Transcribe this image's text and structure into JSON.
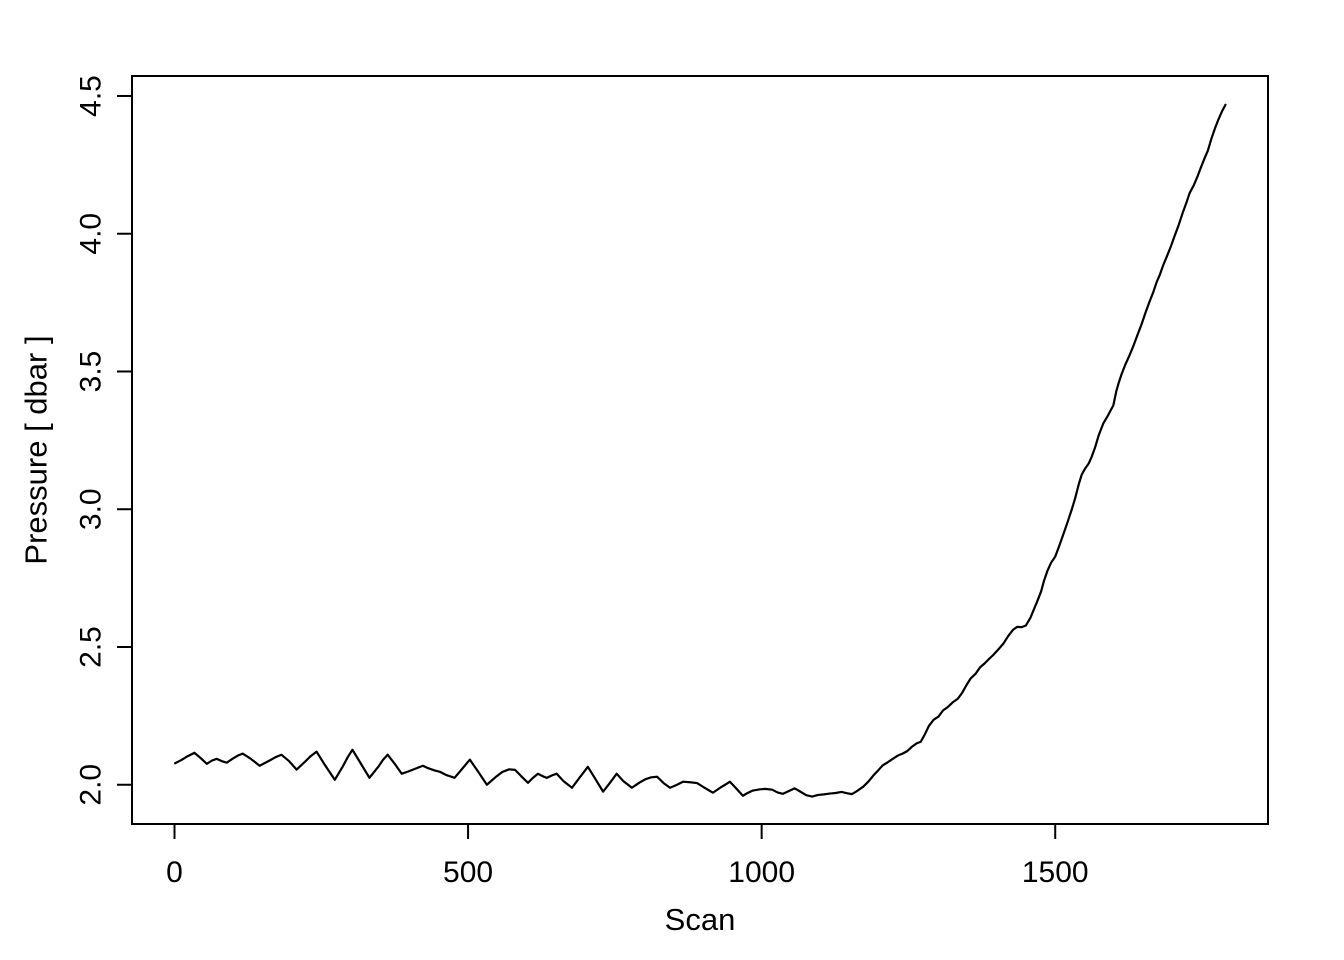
{
  "figure": {
    "background_color": "#FFFFFF",
    "foreground_color": "#000000"
  },
  "chart_data": {
    "type": "line",
    "title": "",
    "xlabel": "Scan",
    "ylabel": "Pressure [ dbar ]",
    "grid": false,
    "legend": null,
    "line_color": "#000000",
    "background": "#FFFFFF",
    "xlim": [
      -72.4,
      1862.4
    ],
    "ylim": [
      1.8575,
      4.5725
    ],
    "x_ticks": [
      0,
      500,
      1000,
      1500
    ],
    "x_tick_labels": [
      "0",
      "500",
      "1000",
      "1500"
    ],
    "y_ticks": [
      2.0,
      2.5,
      3.0,
      3.5,
      4.0,
      4.5
    ],
    "y_tick_labels": [
      "2.0",
      "2.5",
      "3.0",
      "3.5",
      "4.0",
      "4.5"
    ],
    "series": [
      {
        "name": "pressure",
        "points": [
          [
            1,
            2.078
          ],
          [
            12,
            2.09
          ],
          [
            22,
            2.103
          ],
          [
            34,
            2.116
          ],
          [
            45,
            2.096
          ],
          [
            55,
            2.076
          ],
          [
            64,
            2.088
          ],
          [
            72,
            2.094
          ],
          [
            80,
            2.086
          ],
          [
            89,
            2.08
          ],
          [
            100,
            2.096
          ],
          [
            108,
            2.106
          ],
          [
            116,
            2.113
          ],
          [
            130,
            2.094
          ],
          [
            145,
            2.069
          ],
          [
            162,
            2.088
          ],
          [
            172,
            2.1
          ],
          [
            182,
            2.109
          ],
          [
            195,
            2.086
          ],
          [
            208,
            2.055
          ],
          [
            222,
            2.083
          ],
          [
            232,
            2.104
          ],
          [
            242,
            2.12
          ],
          [
            256,
            2.072
          ],
          [
            273,
            2.018
          ],
          [
            287,
            2.068
          ],
          [
            295,
            2.1
          ],
          [
            303,
            2.127
          ],
          [
            317,
            2.078
          ],
          [
            332,
            2.025
          ],
          [
            347,
            2.065
          ],
          [
            355,
            2.09
          ],
          [
            363,
            2.109
          ],
          [
            375,
            2.076
          ],
          [
            387,
            2.04
          ],
          [
            398,
            2.048
          ],
          [
            410,
            2.058
          ],
          [
            423,
            2.069
          ],
          [
            432,
            2.06
          ],
          [
            443,
            2.052
          ],
          [
            452,
            2.047
          ],
          [
            463,
            2.035
          ],
          [
            477,
            2.025
          ],
          [
            490,
            2.058
          ],
          [
            503,
            2.091
          ],
          [
            517,
            2.048
          ],
          [
            532,
            2.0
          ],
          [
            547,
            2.028
          ],
          [
            558,
            2.046
          ],
          [
            570,
            2.056
          ],
          [
            580,
            2.054
          ],
          [
            590,
            2.032
          ],
          [
            602,
            2.007
          ],
          [
            610,
            2.024
          ],
          [
            619,
            2.04
          ],
          [
            627,
            2.031
          ],
          [
            634,
            2.025
          ],
          [
            643,
            2.034
          ],
          [
            651,
            2.04
          ],
          [
            663,
            2.012
          ],
          [
            677,
            1.989
          ],
          [
            690,
            2.026
          ],
          [
            704,
            2.065
          ],
          [
            717,
            2.02
          ],
          [
            730,
            1.975
          ],
          [
            742,
            2.008
          ],
          [
            753,
            2.04
          ],
          [
            765,
            2.012
          ],
          [
            779,
            1.989
          ],
          [
            792,
            2.008
          ],
          [
            802,
            2.02
          ],
          [
            812,
            2.027
          ],
          [
            822,
            2.029
          ],
          [
            833,
            2.006
          ],
          [
            844,
            1.989
          ],
          [
            855,
            1.999
          ],
          [
            866,
            2.011
          ],
          [
            878,
            2.009
          ],
          [
            890,
            2.006
          ],
          [
            902,
            1.99
          ],
          [
            917,
            1.971
          ],
          [
            930,
            1.99
          ],
          [
            940,
            2.003
          ],
          [
            946,
            2.011
          ],
          [
            957,
            1.986
          ],
          [
            968,
            1.96
          ],
          [
            976,
            1.97
          ],
          [
            985,
            1.979
          ],
          [
            996,
            1.983
          ],
          [
            1006,
            1.985
          ],
          [
            1018,
            1.982
          ],
          [
            1027,
            1.972
          ],
          [
            1036,
            1.967
          ],
          [
            1046,
            1.977
          ],
          [
            1056,
            1.987
          ],
          [
            1066,
            1.975
          ],
          [
            1076,
            1.962
          ],
          [
            1086,
            1.957
          ],
          [
            1096,
            1.963
          ],
          [
            1106,
            1.965
          ],
          [
            1116,
            1.968
          ],
          [
            1126,
            1.97
          ],
          [
            1136,
            1.974
          ],
          [
            1146,
            1.969
          ],
          [
            1154,
            1.966
          ],
          [
            1163,
            1.978
          ],
          [
            1173,
            1.993
          ],
          [
            1182,
            2.012
          ],
          [
            1190,
            2.033
          ],
          [
            1198,
            2.051
          ],
          [
            1206,
            2.07
          ],
          [
            1215,
            2.082
          ],
          [
            1224,
            2.095
          ],
          [
            1232,
            2.106
          ],
          [
            1240,
            2.113
          ],
          [
            1248,
            2.122
          ],
          [
            1256,
            2.138
          ],
          [
            1264,
            2.15
          ],
          [
            1271,
            2.156
          ],
          [
            1278,
            2.183
          ],
          [
            1285,
            2.214
          ],
          [
            1293,
            2.236
          ],
          [
            1301,
            2.247
          ],
          [
            1309,
            2.27
          ],
          [
            1317,
            2.282
          ],
          [
            1326,
            2.3
          ],
          [
            1334,
            2.312
          ],
          [
            1341,
            2.332
          ],
          [
            1349,
            2.362
          ],
          [
            1356,
            2.386
          ],
          [
            1364,
            2.402
          ],
          [
            1372,
            2.426
          ],
          [
            1380,
            2.441
          ],
          [
            1387,
            2.456
          ],
          [
            1394,
            2.47
          ],
          [
            1403,
            2.491
          ],
          [
            1412,
            2.513
          ],
          [
            1420,
            2.54
          ],
          [
            1428,
            2.562
          ],
          [
            1435,
            2.573
          ],
          [
            1443,
            2.572
          ],
          [
            1450,
            2.578
          ],
          [
            1458,
            2.607
          ],
          [
            1464,
            2.638
          ],
          [
            1470,
            2.669
          ],
          [
            1476,
            2.702
          ],
          [
            1481,
            2.741
          ],
          [
            1487,
            2.778
          ],
          [
            1493,
            2.806
          ],
          [
            1500,
            2.828
          ],
          [
            1507,
            2.868
          ],
          [
            1514,
            2.91
          ],
          [
            1521,
            2.953
          ],
          [
            1528,
            2.998
          ],
          [
            1534,
            3.04
          ],
          [
            1540,
            3.09
          ],
          [
            1545,
            3.125
          ],
          [
            1551,
            3.148
          ],
          [
            1557,
            3.166
          ],
          [
            1562,
            3.19
          ],
          [
            1568,
            3.225
          ],
          [
            1574,
            3.268
          ],
          [
            1582,
            3.312
          ],
          [
            1590,
            3.341
          ],
          [
            1599,
            3.377
          ],
          [
            1604,
            3.428
          ],
          [
            1608,
            3.458
          ],
          [
            1613,
            3.49
          ],
          [
            1619,
            3.523
          ],
          [
            1626,
            3.556
          ],
          [
            1633,
            3.592
          ],
          [
            1640,
            3.632
          ],
          [
            1647,
            3.671
          ],
          [
            1654,
            3.715
          ],
          [
            1660,
            3.75
          ],
          [
            1667,
            3.788
          ],
          [
            1673,
            3.826
          ],
          [
            1678,
            3.85
          ],
          [
            1684,
            3.886
          ],
          [
            1691,
            3.922
          ],
          [
            1697,
            3.954
          ],
          [
            1703,
            3.99
          ],
          [
            1710,
            4.03
          ],
          [
            1717,
            4.075
          ],
          [
            1723,
            4.11
          ],
          [
            1729,
            4.148
          ],
          [
            1736,
            4.176
          ],
          [
            1742,
            4.206
          ],
          [
            1748,
            4.24
          ],
          [
            1754,
            4.272
          ],
          [
            1760,
            4.302
          ],
          [
            1766,
            4.345
          ],
          [
            1772,
            4.382
          ],
          [
            1778,
            4.415
          ],
          [
            1784,
            4.444
          ],
          [
            1790,
            4.468
          ]
        ]
      }
    ]
  }
}
